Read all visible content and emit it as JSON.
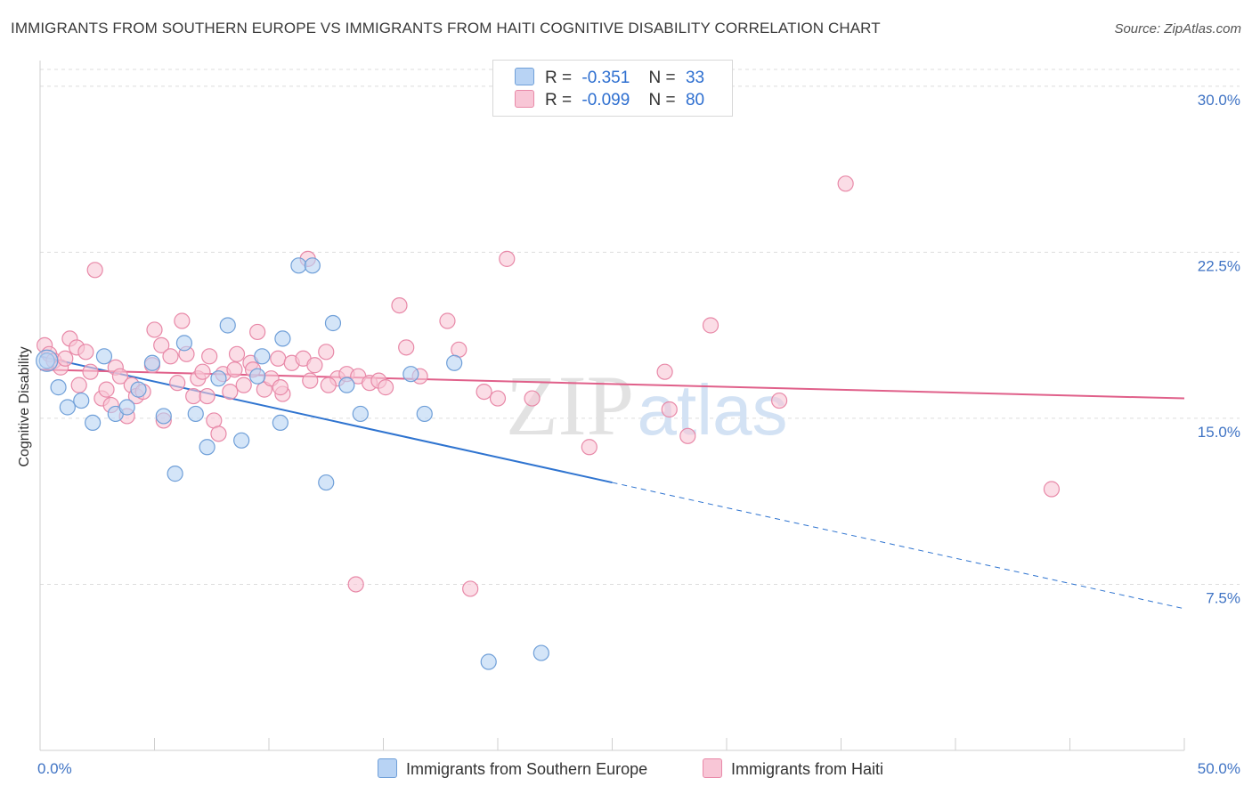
{
  "title": "IMMIGRANTS FROM SOUTHERN EUROPE VS IMMIGRANTS FROM HAITI COGNITIVE DISABILITY CORRELATION CHART",
  "source": "Source: ZipAtlas.com",
  "watermark": {
    "zip": "ZIP",
    "atlas": "atlas"
  },
  "legend": {
    "series1": {
      "r_label": "R =",
      "r_value": "-0.351",
      "n_label": "N =",
      "n_value": "33"
    },
    "series2": {
      "r_label": "R =",
      "r_value": "-0.099",
      "n_label": "N =",
      "n_value": "80"
    }
  },
  "colors": {
    "series1_fill": "#b8d3f4",
    "series1_stroke": "#6f9fd8",
    "series1_line": "#2f74d0",
    "series2_fill": "#f8c6d6",
    "series2_stroke": "#e889a8",
    "series2_line": "#e0608a",
    "axis_text": "#3f73c4",
    "grid": "#dddddd"
  },
  "chart_data": {
    "type": "scatter",
    "title": "IMMIGRANTS FROM SOUTHERN EUROPE VS IMMIGRANTS FROM HAITI COGNITIVE DISABILITY CORRELATION CHART",
    "xlabel": "",
    "ylabel": "Cognitive Disability",
    "xlim": [
      0,
      50
    ],
    "ylim": [
      0,
      31
    ],
    "x_tick_labels": [
      "0.0%",
      "50.0%"
    ],
    "y_tick_labels": [
      "7.5%",
      "15.0%",
      "22.5%",
      "30.0%"
    ],
    "y_ticks": [
      7.5,
      15.0,
      22.5,
      30.0
    ],
    "grid": true,
    "legend_position": "top-center",
    "series": [
      {
        "name": "Immigrants from Southern Europe",
        "points": [
          [
            0.3,
            17.6
          ],
          [
            0.8,
            16.4
          ],
          [
            1.2,
            15.5
          ],
          [
            1.8,
            15.8
          ],
          [
            2.3,
            14.8
          ],
          [
            2.8,
            17.8
          ],
          [
            3.3,
            15.2
          ],
          [
            3.8,
            15.5
          ],
          [
            4.3,
            16.3
          ],
          [
            4.9,
            17.5
          ],
          [
            5.4,
            15.1
          ],
          [
            5.9,
            12.5
          ],
          [
            6.3,
            18.4
          ],
          [
            6.8,
            15.2
          ],
          [
            7.3,
            13.7
          ],
          [
            7.8,
            16.8
          ],
          [
            8.2,
            19.2
          ],
          [
            8.8,
            14.0
          ],
          [
            9.5,
            16.9
          ],
          [
            9.7,
            17.8
          ],
          [
            10.5,
            14.8
          ],
          [
            10.6,
            18.6
          ],
          [
            11.3,
            21.9
          ],
          [
            11.9,
            21.9
          ],
          [
            12.5,
            12.1
          ],
          [
            12.8,
            19.3
          ],
          [
            13.4,
            16.5
          ],
          [
            14.0,
            15.2
          ],
          [
            16.2,
            17.0
          ],
          [
            16.8,
            15.2
          ],
          [
            18.1,
            17.5
          ],
          [
            19.6,
            4.0
          ],
          [
            21.9,
            4.4
          ]
        ]
      },
      {
        "name": "Immigrants from Haiti",
        "points": [
          [
            0.2,
            18.3
          ],
          [
            0.4,
            17.9
          ],
          [
            0.6,
            17.6
          ],
          [
            0.9,
            17.3
          ],
          [
            1.1,
            17.7
          ],
          [
            1.3,
            18.6
          ],
          [
            1.6,
            18.2
          ],
          [
            1.7,
            16.5
          ],
          [
            2.0,
            18.0
          ],
          [
            2.2,
            17.1
          ],
          [
            2.4,
            21.7
          ],
          [
            2.7,
            15.9
          ],
          [
            2.9,
            16.3
          ],
          [
            3.1,
            15.6
          ],
          [
            3.3,
            17.3
          ],
          [
            3.5,
            16.9
          ],
          [
            3.8,
            15.1
          ],
          [
            4.0,
            16.5
          ],
          [
            4.2,
            16.0
          ],
          [
            4.5,
            16.2
          ],
          [
            4.9,
            17.4
          ],
          [
            5.0,
            19.0
          ],
          [
            5.3,
            18.3
          ],
          [
            5.4,
            14.9
          ],
          [
            5.7,
            17.8
          ],
          [
            6.0,
            16.6
          ],
          [
            6.2,
            19.4
          ],
          [
            6.4,
            17.9
          ],
          [
            6.7,
            16.0
          ],
          [
            6.9,
            16.8
          ],
          [
            7.1,
            17.1
          ],
          [
            7.3,
            16.0
          ],
          [
            7.6,
            14.9
          ],
          [
            7.8,
            14.3
          ],
          [
            8.0,
            17.0
          ],
          [
            8.3,
            16.2
          ],
          [
            8.5,
            17.2
          ],
          [
            8.6,
            17.9
          ],
          [
            8.9,
            16.5
          ],
          [
            9.2,
            17.5
          ],
          [
            9.5,
            18.9
          ],
          [
            9.8,
            16.3
          ],
          [
            10.1,
            16.8
          ],
          [
            10.4,
            17.7
          ],
          [
            10.6,
            16.1
          ],
          [
            11.0,
            17.5
          ],
          [
            11.5,
            17.7
          ],
          [
            11.8,
            16.7
          ],
          [
            12.0,
            17.4
          ],
          [
            12.5,
            18.0
          ],
          [
            13.0,
            16.8
          ],
          [
            13.4,
            17.0
          ],
          [
            13.9,
            16.9
          ],
          [
            14.4,
            16.6
          ],
          [
            14.8,
            16.7
          ],
          [
            15.1,
            16.4
          ],
          [
            15.7,
            20.1
          ],
          [
            16.0,
            18.2
          ],
          [
            16.6,
            16.9
          ],
          [
            17.8,
            19.4
          ],
          [
            18.3,
            18.1
          ],
          [
            18.8,
            7.3
          ],
          [
            19.4,
            16.2
          ],
          [
            20.0,
            15.9
          ],
          [
            21.5,
            15.9
          ],
          [
            24.0,
            13.7
          ],
          [
            27.3,
            17.1
          ],
          [
            27.5,
            15.4
          ],
          [
            28.3,
            14.2
          ],
          [
            29.3,
            19.2
          ],
          [
            32.3,
            15.8
          ],
          [
            35.2,
            25.6
          ],
          [
            44.2,
            11.8
          ],
          [
            13.8,
            7.5
          ],
          [
            11.7,
            22.2
          ],
          [
            20.4,
            22.2
          ],
          [
            7.4,
            17.8
          ],
          [
            9.3,
            17.2
          ],
          [
            10.5,
            16.4
          ],
          [
            12.6,
            16.5
          ]
        ]
      }
    ],
    "trend_lines": [
      {
        "series": "Immigrants from Southern Europe",
        "x_start": 0,
        "y_start": 17.8,
        "x_solid_end": 25,
        "x_end": 50,
        "y_end": 6.4
      },
      {
        "series": "Immigrants from Haiti",
        "x_start": 0,
        "y_start": 17.2,
        "x_end": 50,
        "y_end": 15.9
      }
    ]
  }
}
